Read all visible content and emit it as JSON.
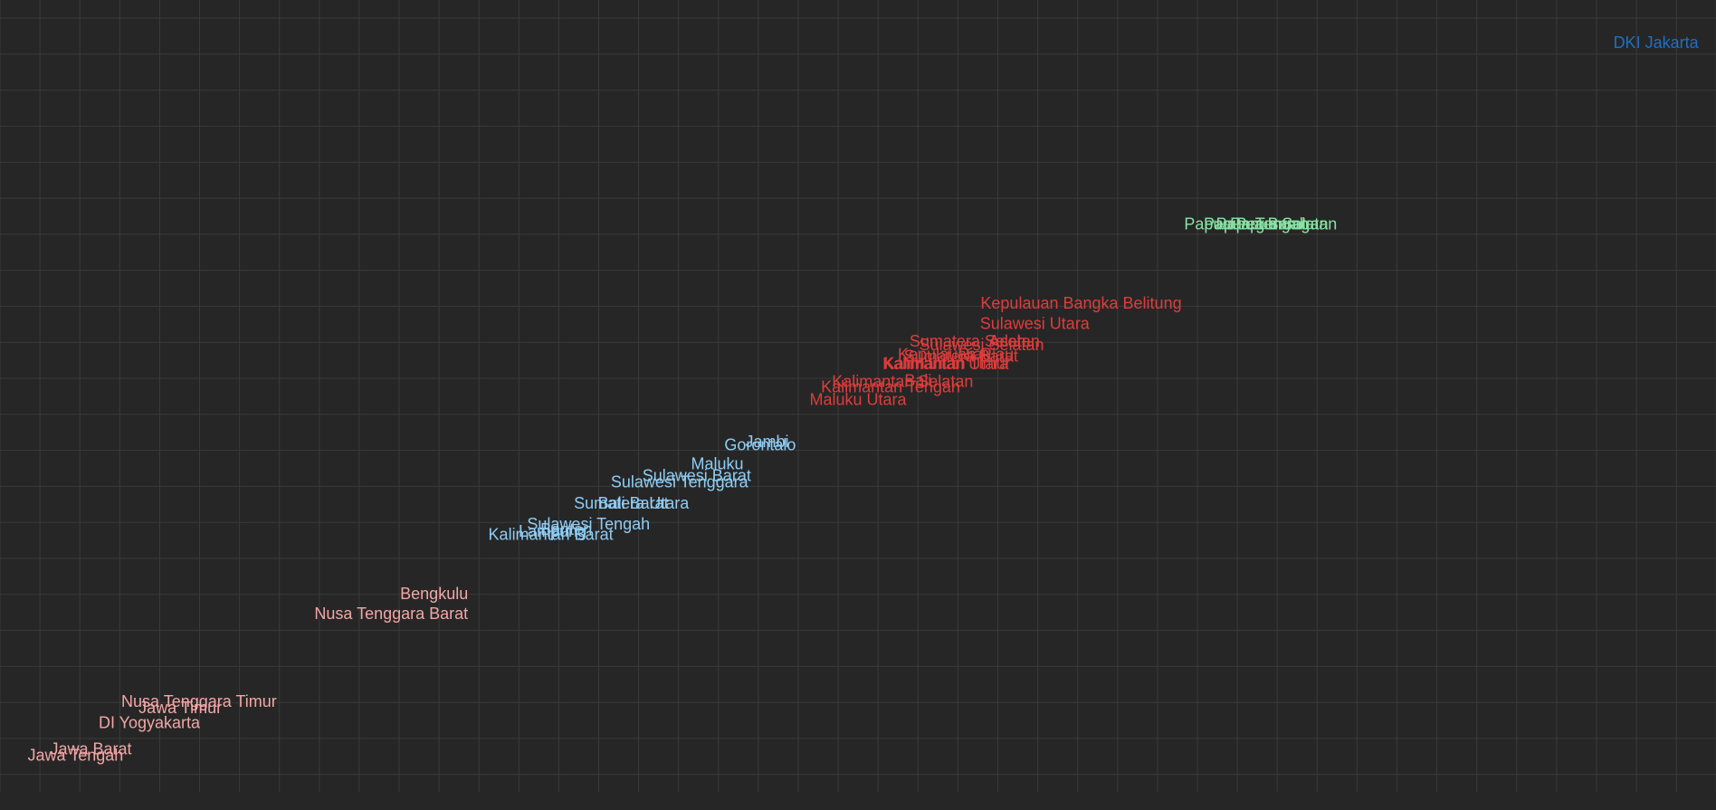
{
  "chart_data": {
    "type": "scatter",
    "title": "",
    "xlabel": "",
    "ylabel": "",
    "xlim": [
      0,
      100
    ],
    "ylim": [
      0,
      100
    ],
    "grid": true,
    "colors": {
      "background": "#262626",
      "grid": "#3a3a3a",
      "group_lowest": "#f4a6a6",
      "group_low": "#8ecdf5",
      "group_mid": "#e03c3c",
      "group_high": "#86e3a4",
      "group_top": "#1f6fc5"
    },
    "points": [
      {
        "label": "DKI Jakarta",
        "x": 96.5,
        "y": 94.5,
        "group": "group_top",
        "anchor": "middle"
      },
      {
        "label": "Papua Pegunungan",
        "x": 73.2,
        "y": 71.6,
        "group": "group_high",
        "anchor": "middle"
      },
      {
        "label": "Papua Barat",
        "x": 73.5,
        "y": 71.6,
        "group": "group_high",
        "anchor": "middle"
      },
      {
        "label": "Papua Tengah",
        "x": 73.2,
        "y": 71.6,
        "group": "group_high",
        "anchor": "middle"
      },
      {
        "label": "Papua Selatan",
        "x": 74.8,
        "y": 71.6,
        "group": "group_high",
        "anchor": "middle"
      },
      {
        "label": "Kepulauan Bangka Belitung",
        "x": 63.0,
        "y": 61.6,
        "group": "group_mid",
        "anchor": "middle"
      },
      {
        "label": "Sulawesi Utara",
        "x": 60.3,
        "y": 59.0,
        "group": "group_mid",
        "anchor": "middle"
      },
      {
        "label": "Sumatera Selatan",
        "x": 56.8,
        "y": 56.8,
        "group": "group_mid",
        "anchor": "middle"
      },
      {
        "label": "Aceh",
        "x": 58.7,
        "y": 56.8,
        "group": "group_mid",
        "anchor": "middle"
      },
      {
        "label": "Sulawesi Selatan",
        "x": 57.2,
        "y": 56.3,
        "group": "group_mid",
        "anchor": "middle"
      },
      {
        "label": "Riau",
        "x": 56.8,
        "y": 55.1,
        "group": "group_mid",
        "anchor": "middle"
      },
      {
        "label": "Kepulauan Riau",
        "x": 55.7,
        "y": 55.1,
        "group": "group_mid",
        "anchor": "middle"
      },
      {
        "label": "Sumatera Barat",
        "x": 56.0,
        "y": 54.9,
        "group": "group_mid",
        "anchor": "middle"
      },
      {
        "label": "Kalimantan Timur",
        "x": 55.2,
        "y": 54.0,
        "group": "group_mid",
        "anchor": "middle"
      },
      {
        "label": "Kalimantan Utara",
        "x": 55.1,
        "y": 53.9,
        "group": "group_mid",
        "anchor": "middle"
      },
      {
        "label": "Bali",
        "x": 53.5,
        "y": 51.8,
        "group": "group_mid",
        "anchor": "middle"
      },
      {
        "label": "Kalimantan Selatan",
        "x": 52.6,
        "y": 51.7,
        "group": "group_mid",
        "anchor": "middle"
      },
      {
        "label": "Kalimantan Tengah",
        "x": 51.9,
        "y": 51.0,
        "group": "group_mid",
        "anchor": "middle"
      },
      {
        "label": "Maluku Utara",
        "x": 50.0,
        "y": 49.4,
        "group": "group_mid",
        "anchor": "middle"
      },
      {
        "label": "Jambi",
        "x": 44.7,
        "y": 44.1,
        "group": "group_low",
        "anchor": "middle"
      },
      {
        "label": "Gorontalo",
        "x": 44.3,
        "y": 43.7,
        "group": "group_low",
        "anchor": "middle"
      },
      {
        "label": "Maluku",
        "x": 41.8,
        "y": 41.3,
        "group": "group_low",
        "anchor": "middle"
      },
      {
        "label": "Sulawesi Barat",
        "x": 40.6,
        "y": 39.8,
        "group": "group_low",
        "anchor": "middle"
      },
      {
        "label": "Sulawesi Tenggara",
        "x": 39.6,
        "y": 39.0,
        "group": "group_low",
        "anchor": "middle"
      },
      {
        "label": "Sumatera Utara",
        "x": 36.8,
        "y": 36.3,
        "group": "group_low",
        "anchor": "middle"
      },
      {
        "label": "Bali Barat",
        "x": 36.9,
        "y": 36.3,
        "group": "group_low",
        "anchor": "middle"
      },
      {
        "label": "Sulawesi Tengah",
        "x": 34.3,
        "y": 33.7,
        "group": "group_low",
        "anchor": "middle"
      },
      {
        "label": "Banten",
        "x": 33.0,
        "y": 33.0,
        "group": "group_low",
        "anchor": "middle"
      },
      {
        "label": "Lampung",
        "x": 32.2,
        "y": 32.8,
        "group": "group_low",
        "anchor": "middle"
      },
      {
        "label": "Kalimantan Barat",
        "x": 32.1,
        "y": 32.4,
        "group": "group_low",
        "anchor": "middle"
      },
      {
        "label": "Bengkulu",
        "x": 25.3,
        "y": 24.9,
        "group": "group_lowest",
        "anchor": "middle"
      },
      {
        "label": "Nusa Tenggara Barat",
        "x": 22.8,
        "y": 22.4,
        "group": "group_lowest",
        "anchor": "middle"
      },
      {
        "label": "Nusa Tenggara Timur",
        "x": 11.6,
        "y": 11.3,
        "group": "group_lowest",
        "anchor": "middle"
      },
      {
        "label": "Jawa Timur",
        "x": 10.5,
        "y": 10.5,
        "group": "group_lowest",
        "anchor": "middle"
      },
      {
        "label": "DI Yogyakarta",
        "x": 8.7,
        "y": 8.6,
        "group": "group_lowest",
        "anchor": "middle"
      },
      {
        "label": "Jawa Barat",
        "x": 5.3,
        "y": 5.3,
        "group": "group_lowest",
        "anchor": "middle"
      },
      {
        "label": "Jawa Tengah",
        "x": 4.4,
        "y": 4.5,
        "group": "group_lowest",
        "anchor": "middle"
      }
    ]
  }
}
